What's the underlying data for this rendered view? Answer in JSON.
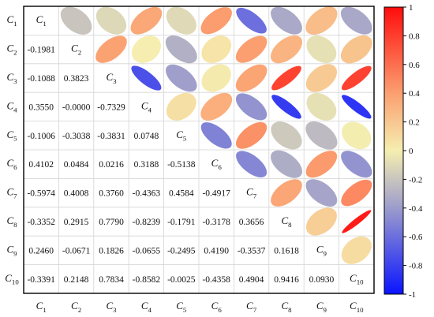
{
  "chart_data": {
    "type": "heatmap",
    "subtype": "correlation-matrix-ellipse",
    "title": "",
    "variables": [
      "C1",
      "C2",
      "C3",
      "C4",
      "C5",
      "C6",
      "C7",
      "C8",
      "C9",
      "C10"
    ],
    "lower_triangle": "numbers",
    "upper_triangle": "ellipses",
    "diagonal": "variable labels",
    "matrix": [
      [
        1,
        -0.1981,
        -0.1088,
        0.355,
        -0.1006,
        0.4102,
        -0.5974,
        -0.3352,
        0.246,
        -0.3391
      ],
      [
        -0.1981,
        1,
        0.3823,
        -0.0,
        -0.3038,
        0.0484,
        0.4008,
        0.2915,
        -0.0671,
        0.2148
      ],
      [
        -0.1088,
        0.3823,
        1,
        -0.7329,
        -0.3831,
        0.0216,
        0.376,
        0.779,
        0.1826,
        0.7834
      ],
      [
        0.355,
        -0.0,
        -0.7329,
        1,
        0.0748,
        0.3188,
        -0.4363,
        -0.8239,
        -0.0655,
        -0.8582
      ],
      [
        -0.1006,
        -0.3038,
        -0.3831,
        0.0748,
        1,
        -0.5138,
        0.4584,
        -0.1791,
        -0.2495,
        -0.0025
      ],
      [
        0.4102,
        0.0484,
        0.0216,
        0.3188,
        -0.5138,
        1,
        -0.4917,
        -0.3178,
        0.419,
        -0.4358
      ],
      [
        -0.5974,
        0.4008,
        0.376,
        -0.4363,
        0.4584,
        -0.4917,
        1,
        0.3656,
        -0.3537,
        0.4904
      ],
      [
        -0.3352,
        0.2915,
        0.779,
        -0.8239,
        -0.1791,
        -0.3178,
        0.3656,
        1,
        0.1618,
        0.9416
      ],
      [
        0.246,
        -0.0671,
        0.1826,
        -0.0655,
        -0.2495,
        0.419,
        -0.3537,
        0.1618,
        1,
        0.093
      ],
      [
        -0.3391,
        0.2148,
        0.7834,
        -0.8582,
        -0.0025,
        -0.4358,
        0.4904,
        0.9416,
        0.093,
        1
      ]
    ],
    "cell_labels": [
      [
        "",
        "-0.1981",
        "-0.1088",
        "0.3550",
        "-0.1006",
        "0.4102",
        "-0.5974",
        "-0.3352",
        "0.2460",
        "-0.3391"
      ],
      [
        "-0.1981",
        "",
        "0.3823",
        "-0.0000",
        "-0.3038",
        "0.0484",
        "0.4008",
        "0.2915",
        "-0.0671",
        "0.2148"
      ],
      [
        "-0.1088",
        "0.3823",
        "",
        "-0.7329",
        "-0.3831",
        "0.0216",
        "0.3760",
        "0.7790",
        "0.1826",
        "0.7834"
      ],
      [
        "0.3550",
        "-0.0000",
        "-0.7329",
        "",
        "0.0748",
        "0.3188",
        "-0.4363",
        "-0.8239",
        "-0.0655",
        "-0.8582"
      ],
      [
        "-0.1006",
        "-0.3038",
        "-0.3831",
        "0.0748",
        "",
        "-0.5138",
        "0.4584",
        "-0.1791",
        "-0.2495",
        "-0.0025"
      ],
      [
        "0.4102",
        "0.0484",
        "0.0216",
        "0.3188",
        "-0.5138",
        "",
        "-0.4917",
        "-0.3178",
        "0.4190",
        "-0.4358"
      ],
      [
        "-0.5974",
        "0.4008",
        "0.3760",
        "-0.4363",
        "0.4584",
        "-0.4917",
        "",
        "0.3656",
        "-0.3537",
        "0.4904"
      ],
      [
        "-0.3352",
        "0.2915",
        "0.7790",
        "-0.8239",
        "-0.1791",
        "-0.3178",
        "0.3656",
        "",
        "0.1618",
        "0.9416"
      ],
      [
        "0.2460",
        "-0.0671",
        "0.1826",
        "-0.0655",
        "-0.2495",
        "0.4190",
        "-0.3537",
        "0.1618",
        "",
        "0.0930"
      ],
      [
        "-0.3391",
        "0.2148",
        "0.7834",
        "-0.8582",
        "-0.0025",
        "-0.4358",
        "0.4904",
        "0.9416",
        "0.0930",
        ""
      ]
    ],
    "colorbar": {
      "range": [
        -1,
        1
      ],
      "ticks": [
        "1",
        "0.8",
        "0.6",
        "0.4",
        "0.2",
        "0",
        "-0.2",
        "-0.4",
        "-0.6",
        "-0.8",
        "-1"
      ],
      "colors": {
        "low": "#0a14ff",
        "mid_low": "#9c9ccc",
        "mid": "#f5eeb0",
        "mid_high": "#fb9f70",
        "high": "#ff0d0d"
      }
    },
    "grid": true
  }
}
